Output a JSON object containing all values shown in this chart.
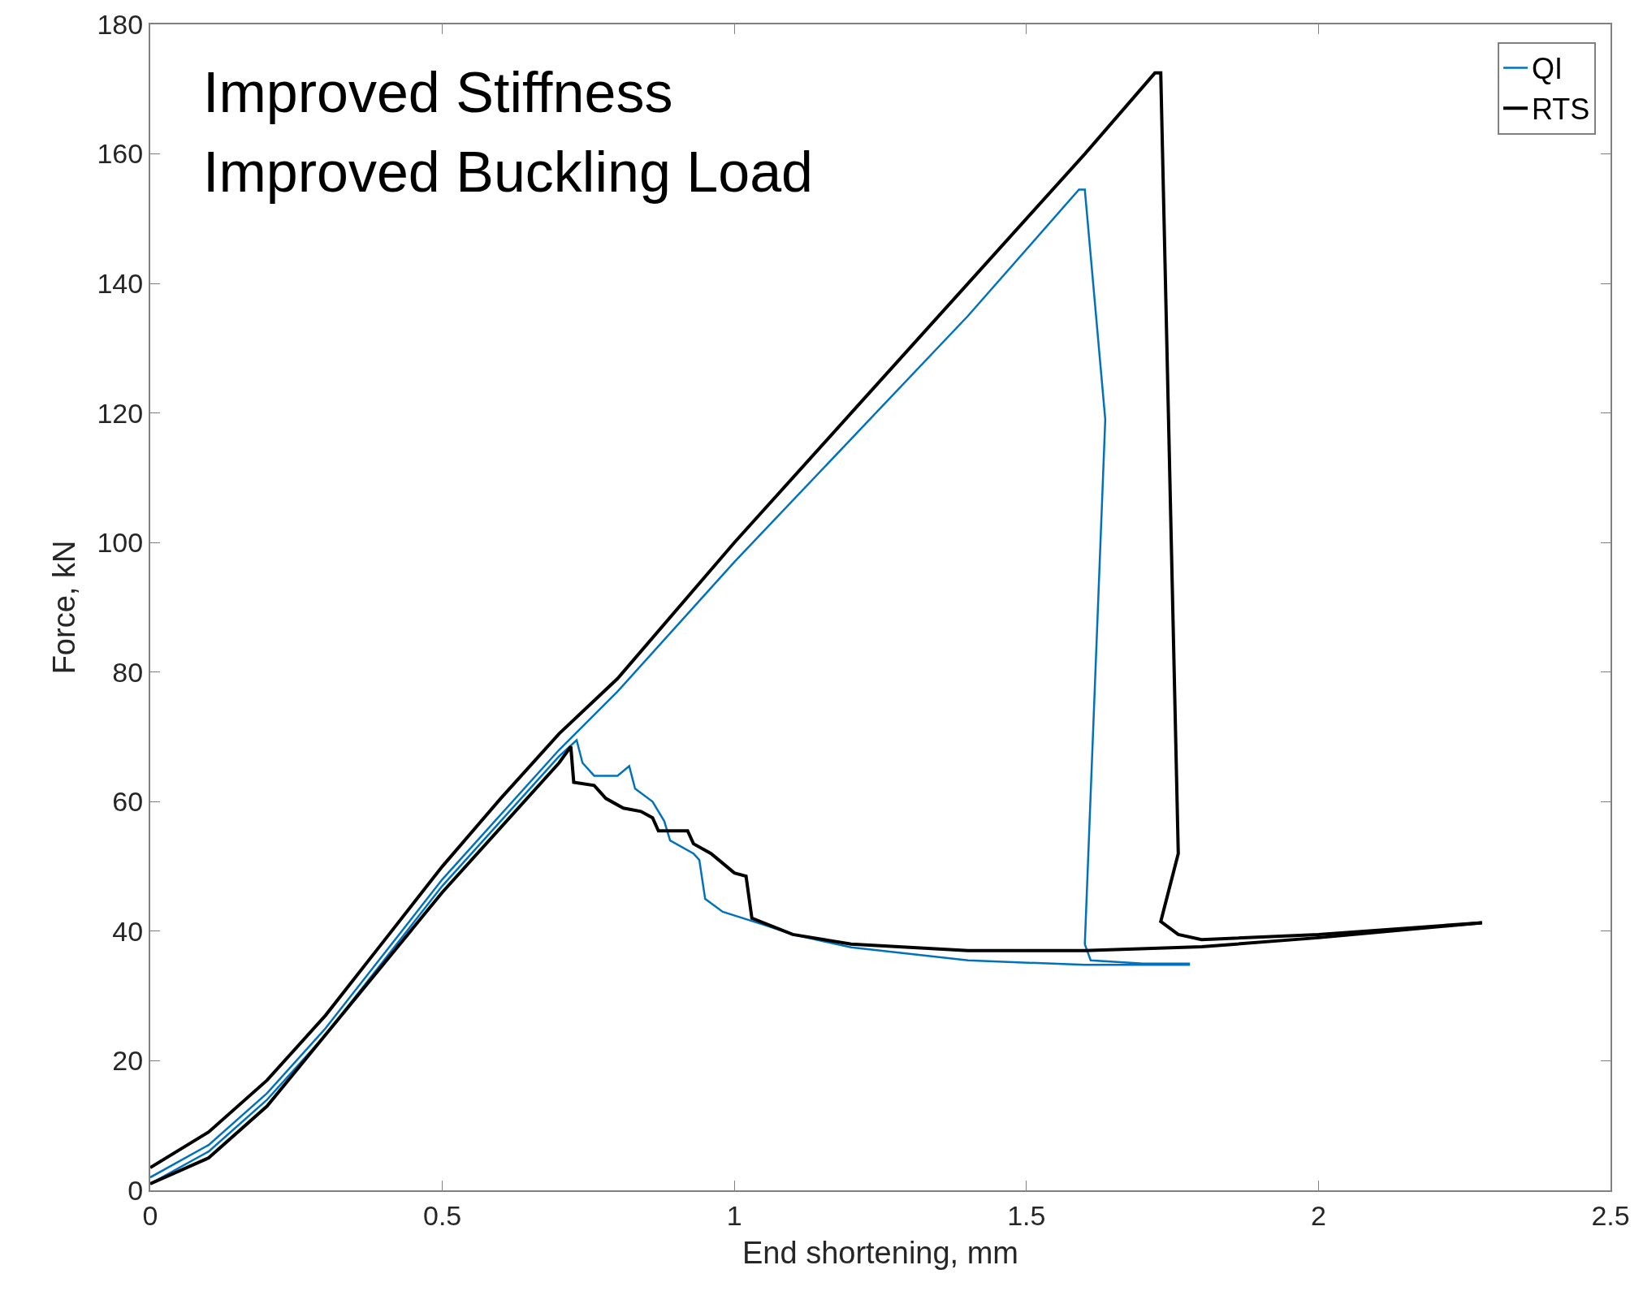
{
  "chart_data": {
    "type": "line",
    "xlabel": "End shortening, mm",
    "ylabel": "Force, kN",
    "xlim": [
      0,
      2.5
    ],
    "xticks": [
      0,
      0.5,
      1,
      1.5,
      2,
      2.5
    ],
    "ylim": [
      0,
      180
    ],
    "yticks": [
      0,
      20,
      40,
      60,
      80,
      100,
      120,
      140,
      160,
      180
    ],
    "legend": "top right",
    "marker": "none",
    "line_style": "solid",
    "annotations": [
      "Improved Stiffness",
      "Improved Buckling Load"
    ],
    "series": [
      {
        "name": "QI",
        "color": "#0072bd",
        "x": [
          0,
          0.1,
          0.2,
          0.3,
          0.5,
          0.7,
          0.8,
          1.0,
          1.2,
          1.4,
          1.59,
          1.6,
          1.635,
          1.6,
          1.61,
          1.7,
          1.78
        ],
        "values": [
          2,
          7,
          15,
          25,
          48,
          68,
          77,
          97,
          116,
          135,
          154.5,
          154.5,
          119,
          38,
          35.5,
          35,
          35
        ]
      },
      {
        "name": "RTS",
        "color": "#000000",
        "x": [
          0,
          0.1,
          0.2,
          0.3,
          0.4,
          0.5,
          0.6,
          0.7,
          0.8,
          1.0,
          1.2,
          1.4,
          1.6,
          1.72,
          1.73,
          1.76,
          1.73,
          1.76,
          1.8,
          2.0,
          2.28
        ],
        "values": [
          3.5,
          9,
          17,
          27,
          38.5,
          50,
          60.5,
          70.5,
          79,
          100,
          120,
          140,
          160,
          172.5,
          172.5,
          52,
          41.5,
          39.5,
          38.7,
          39.5,
          41.3
        ]
      },
      {
        "color": "#0072bd",
        "x": [
          0,
          0.1,
          0.2,
          0.3,
          0.5,
          0.7,
          0.73,
          0.74,
          0.76,
          0.8,
          0.82,
          0.83,
          0.86,
          0.88,
          0.89,
          0.93,
          0.94,
          0.95,
          0.98,
          1.05,
          1.1,
          1.2,
          1.4,
          1.6,
          1.78
        ],
        "values": [
          1,
          6,
          14,
          24,
          47,
          67,
          69.5,
          66,
          64,
          64,
          65.5,
          62,
          60,
          57,
          54,
          52,
          51,
          45,
          43,
          41,
          39.5,
          37.5,
          35.5,
          34.8,
          34.8
        ]
      },
      {
        "color": "#000000",
        "x": [
          0,
          0.1,
          0.2,
          0.3,
          0.5,
          0.7,
          0.72,
          0.725,
          0.76,
          0.78,
          0.81,
          0.84,
          0.86,
          0.87,
          0.92,
          0.93,
          0.96,
          0.98,
          1.0,
          1.02,
          1.03,
          1.1,
          1.2,
          1.4,
          1.6,
          1.8,
          2.0,
          2.28
        ],
        "values": [
          1,
          5,
          13,
          24,
          46,
          66,
          68.5,
          63,
          62.5,
          60.5,
          59,
          58.5,
          57.5,
          55.5,
          55.5,
          53.5,
          52,
          50.5,
          49,
          48.5,
          42,
          39.5,
          38,
          37,
          37,
          37.6,
          39,
          41.3
        ]
      }
    ]
  }
}
